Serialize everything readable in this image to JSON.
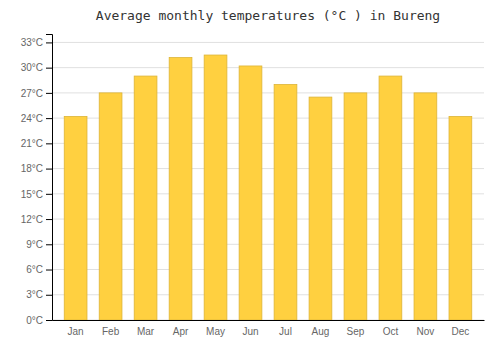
{
  "chart_data": {
    "type": "bar",
    "title": "Average monthly temperatures (°C ) in Bureng",
    "categories": [
      "Jan",
      "Feb",
      "Mar",
      "Apr",
      "May",
      "Jun",
      "Jul",
      "Aug",
      "Sep",
      "Oct",
      "Nov",
      "Dec"
    ],
    "values": [
      24.2,
      27.0,
      29.0,
      31.2,
      31.5,
      30.2,
      28.0,
      26.5,
      27.0,
      29.0,
      27.0,
      24.2
    ],
    "color": "#FFD040",
    "ylim": [
      0,
      34
    ],
    "yticks": [
      {
        "value": 0,
        "label": "0°C"
      },
      {
        "value": 3,
        "label": "3°C"
      },
      {
        "value": 6,
        "label": "6°C"
      },
      {
        "value": 9,
        "label": "9°C"
      },
      {
        "value": 12,
        "label": "12°C"
      },
      {
        "value": 15,
        "label": "15°C"
      },
      {
        "value": 18,
        "label": "18°C"
      },
      {
        "value": 21,
        "label": "21°C"
      },
      {
        "value": 24,
        "label": "24°C"
      },
      {
        "value": 27,
        "label": "27°C"
      },
      {
        "value": 30,
        "label": "30°C"
      },
      {
        "value": 33,
        "label": "33°C"
      }
    ],
    "grid": true
  }
}
